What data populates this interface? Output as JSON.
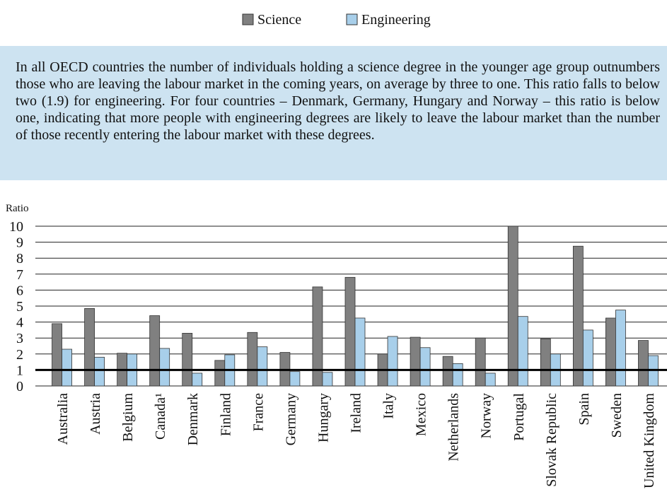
{
  "chart_data": {
    "type": "bar",
    "note": "In all OECD countries the number of individuals holding a science degree in the younger age group outnumbers those who are leaving the labour market in the coming years, on average by three to one. This ratio falls to below two (1.9) for engineering. For four countries – Denmark, Germany, Hungary and Norway – this ratio is below one, indicating that more people with engineering degrees are likely to leave the labour market than the number of those recently entering the labour market with these degrees.",
    "y_label": "Ratio",
    "categories": [
      "Australia",
      "Austria",
      "Belgium",
      "Canada¹",
      "Denmark",
      "Finland",
      "France",
      "Germany",
      "Hungary",
      "Ireland",
      "Italy",
      "Mexico",
      "Netherlands",
      "Norway",
      "Portugal",
      "Slovak Republic",
      "Spain",
      "Sweden",
      "United Kingdom"
    ],
    "series": [
      {
        "name": "Science",
        "color": "#808080",
        "values": [
          3.9,
          4.85,
          2.05,
          4.4,
          3.3,
          1.6,
          3.35,
          2.1,
          6.2,
          6.8,
          2.0,
          3.05,
          1.85,
          3.0,
          10,
          2.95,
          8.75,
          4.25,
          2.85
        ]
      },
      {
        "name": "Engineering",
        "color": "#a8cfea",
        "values": [
          2.3,
          1.8,
          2.0,
          2.35,
          0.8,
          1.95,
          2.45,
          0.9,
          0.85,
          4.25,
          3.1,
          2.4,
          1.4,
          0.8,
          4.35,
          2.0,
          3.5,
          4.75,
          1.9
        ]
      }
    ],
    "reference_line": 1,
    "ylim": [
      0,
      10
    ],
    "yticks": [
      0,
      1,
      2,
      3,
      4,
      5,
      6,
      7,
      8,
      9,
      10
    ],
    "grid": true
  }
}
